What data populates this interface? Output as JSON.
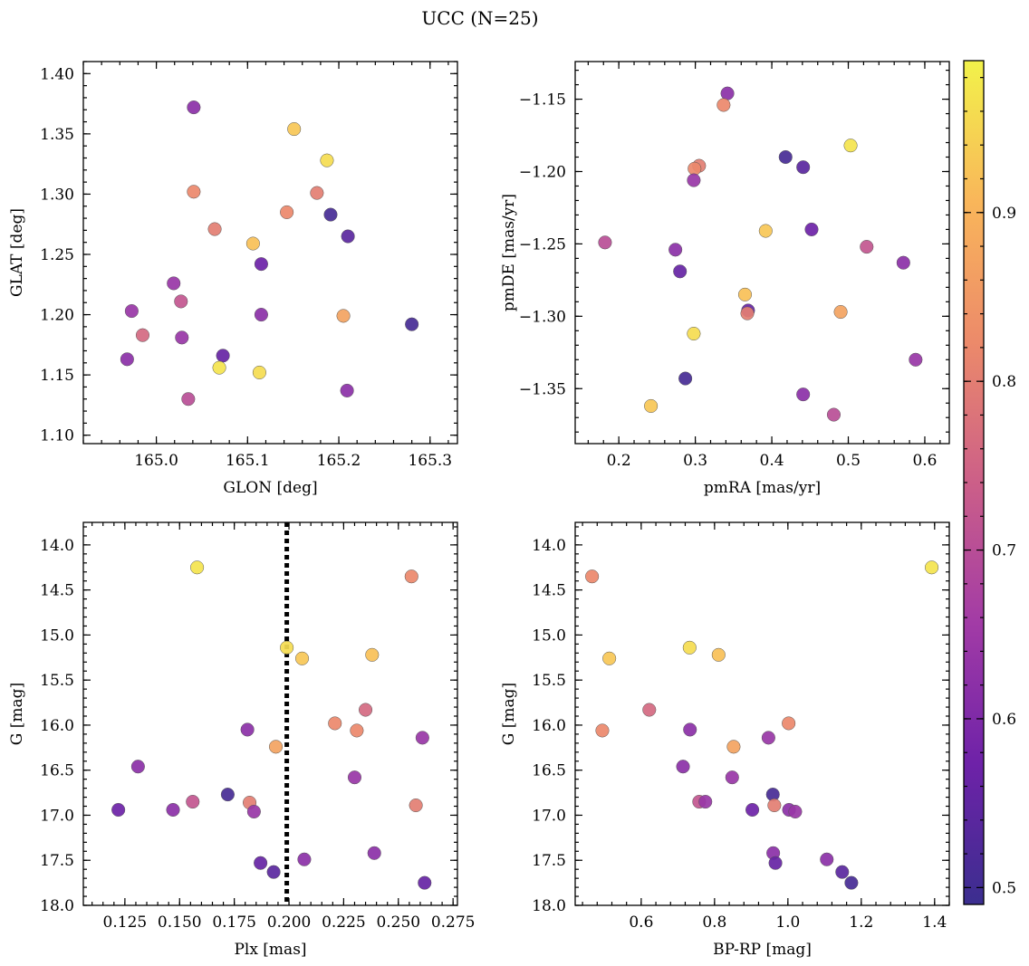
{
  "figure_title": "UCC (N=25)",
  "chart_data": [
    {
      "type": "scatter",
      "xlabel": "GLON [deg]",
      "ylabel": "GLAT [deg]",
      "xlim": [
        164.92,
        165.33
      ],
      "ylim": [
        1.093,
        1.41
      ],
      "xticks": [
        165.0,
        165.1,
        165.2,
        165.3
      ],
      "xtick_labels": [
        "165.0",
        "165.1",
        "165.2",
        "165.3"
      ],
      "yticks": [
        1.1,
        1.15,
        1.2,
        1.25,
        1.3,
        1.35,
        1.4
      ],
      "ytick_labels": [
        "1.10",
        "1.15",
        "1.20",
        "1.25",
        "1.30",
        "1.35",
        "1.40"
      ],
      "points": [
        {
          "x": 165.041,
          "y": 1.372,
          "c": 0.62
        },
        {
          "x": 165.151,
          "y": 1.354,
          "c": 0.93
        },
        {
          "x": 165.187,
          "y": 1.328,
          "c": 0.96
        },
        {
          "x": 165.041,
          "y": 1.302,
          "c": 0.82
        },
        {
          "x": 165.176,
          "y": 1.301,
          "c": 0.8
        },
        {
          "x": 165.143,
          "y": 1.285,
          "c": 0.82
        },
        {
          "x": 165.191,
          "y": 1.283,
          "c": 0.51
        },
        {
          "x": 165.064,
          "y": 1.271,
          "c": 0.8
        },
        {
          "x": 165.21,
          "y": 1.265,
          "c": 0.54
        },
        {
          "x": 165.106,
          "y": 1.259,
          "c": 0.92
        },
        {
          "x": 165.115,
          "y": 1.242,
          "c": 0.57
        },
        {
          "x": 165.019,
          "y": 1.226,
          "c": 0.64
        },
        {
          "x": 165.027,
          "y": 1.211,
          "c": 0.72
        },
        {
          "x": 164.973,
          "y": 1.203,
          "c": 0.64
        },
        {
          "x": 165.115,
          "y": 1.2,
          "c": 0.62
        },
        {
          "x": 165.205,
          "y": 1.199,
          "c": 0.87
        },
        {
          "x": 165.28,
          "y": 1.192,
          "c": 0.51
        },
        {
          "x": 164.985,
          "y": 1.183,
          "c": 0.76
        },
        {
          "x": 165.028,
          "y": 1.181,
          "c": 0.64
        },
        {
          "x": 165.073,
          "y": 1.166,
          "c": 0.56
        },
        {
          "x": 164.968,
          "y": 1.163,
          "c": 0.62
        },
        {
          "x": 165.069,
          "y": 1.156,
          "c": 0.97
        },
        {
          "x": 165.113,
          "y": 1.152,
          "c": 0.96
        },
        {
          "x": 165.209,
          "y": 1.137,
          "c": 0.62
        },
        {
          "x": 165.035,
          "y": 1.13,
          "c": 0.7
        }
      ]
    },
    {
      "type": "scatter",
      "xlabel": "pmRA [mas/yr]",
      "ylabel": "pmDE [mas/yr]",
      "xlim": [
        0.143,
        0.632
      ],
      "ylim": [
        -1.388,
        -1.124
      ],
      "xticks": [
        0.2,
        0.3,
        0.4,
        0.5,
        0.6
      ],
      "xtick_labels": [
        "0.2",
        "0.3",
        "0.4",
        "0.5",
        "0.6"
      ],
      "yticks": [
        -1.35,
        -1.3,
        -1.25,
        -1.2,
        -1.15
      ],
      "ytick_labels": [
        "−1.35",
        "−1.30",
        "−1.25",
        "−1.20",
        "−1.15"
      ],
      "points": [
        {
          "x": 0.342,
          "y": -1.146,
          "c": 0.62
        },
        {
          "x": 0.337,
          "y": -1.154,
          "c": 0.82
        },
        {
          "x": 0.503,
          "y": -1.182,
          "c": 0.97
        },
        {
          "x": 0.418,
          "y": -1.19,
          "c": 0.51
        },
        {
          "x": 0.441,
          "y": -1.197,
          "c": 0.54
        },
        {
          "x": 0.305,
          "y": -1.196,
          "c": 0.8
        },
        {
          "x": 0.299,
          "y": -1.198,
          "c": 0.82
        },
        {
          "x": 0.298,
          "y": -1.206,
          "c": 0.64
        },
        {
          "x": 0.392,
          "y": -1.241,
          "c": 0.93
        },
        {
          "x": 0.452,
          "y": -1.24,
          "c": 0.57
        },
        {
          "x": 0.182,
          "y": -1.249,
          "c": 0.7
        },
        {
          "x": 0.524,
          "y": -1.252,
          "c": 0.72
        },
        {
          "x": 0.274,
          "y": -1.254,
          "c": 0.62
        },
        {
          "x": 0.572,
          "y": -1.263,
          "c": 0.62
        },
        {
          "x": 0.28,
          "y": -1.269,
          "c": 0.56
        },
        {
          "x": 0.365,
          "y": -1.285,
          "c": 0.92
        },
        {
          "x": 0.369,
          "y": -1.296,
          "c": 0.56
        },
        {
          "x": 0.368,
          "y": -1.298,
          "c": 0.8
        },
        {
          "x": 0.49,
          "y": -1.297,
          "c": 0.87
        },
        {
          "x": 0.298,
          "y": -1.312,
          "c": 0.96
        },
        {
          "x": 0.588,
          "y": -1.33,
          "c": 0.64
        },
        {
          "x": 0.287,
          "y": -1.343,
          "c": 0.51
        },
        {
          "x": 0.441,
          "y": -1.354,
          "c": 0.62
        },
        {
          "x": 0.242,
          "y": -1.362,
          "c": 0.93
        },
        {
          "x": 0.481,
          "y": -1.368,
          "c": 0.7
        }
      ]
    },
    {
      "type": "scatter",
      "xlabel": "Plx [mas]",
      "ylabel": "G [mag]",
      "xlim": [
        0.106,
        0.277
      ],
      "ylim": [
        18.0,
        13.75
      ],
      "y_inverted": true,
      "vline": 0.199,
      "xticks": [
        0.125,
        0.15,
        0.175,
        0.2,
        0.225,
        0.25,
        0.275
      ],
      "xtick_labels": [
        "0.125",
        "0.150",
        "0.175",
        "0.200",
        "0.225",
        "0.250",
        "0.275"
      ],
      "yticks": [
        14.0,
        14.5,
        15.0,
        15.5,
        16.0,
        16.5,
        17.0,
        17.5,
        18.0
      ],
      "ytick_labels": [
        "14.0",
        "14.5",
        "15.0",
        "15.5",
        "16.0",
        "16.5",
        "17.0",
        "17.5",
        "18.0"
      ],
      "points": [
        {
          "x": 0.158,
          "y": 14.25,
          "c": 0.97
        },
        {
          "x": 0.256,
          "y": 14.35,
          "c": 0.82
        },
        {
          "x": 0.199,
          "y": 15.14,
          "c": 0.96
        },
        {
          "x": 0.206,
          "y": 15.26,
          "c": 0.93
        },
        {
          "x": 0.238,
          "y": 15.22,
          "c": 0.92
        },
        {
          "x": 0.235,
          "y": 15.83,
          "c": 0.76
        },
        {
          "x": 0.221,
          "y": 15.98,
          "c": 0.82
        },
        {
          "x": 0.181,
          "y": 16.05,
          "c": 0.62
        },
        {
          "x": 0.231,
          "y": 16.06,
          "c": 0.82
        },
        {
          "x": 0.261,
          "y": 16.14,
          "c": 0.64
        },
        {
          "x": 0.194,
          "y": 16.24,
          "c": 0.87
        },
        {
          "x": 0.131,
          "y": 16.46,
          "c": 0.62
        },
        {
          "x": 0.23,
          "y": 16.58,
          "c": 0.64
        },
        {
          "x": 0.172,
          "y": 16.77,
          "c": 0.51
        },
        {
          "x": 0.156,
          "y": 16.85,
          "c": 0.72
        },
        {
          "x": 0.182,
          "y": 16.86,
          "c": 0.8
        },
        {
          "x": 0.258,
          "y": 16.89,
          "c": 0.8
        },
        {
          "x": 0.122,
          "y": 16.94,
          "c": 0.57
        },
        {
          "x": 0.147,
          "y": 16.94,
          "c": 0.62
        },
        {
          "x": 0.184,
          "y": 16.96,
          "c": 0.64
        },
        {
          "x": 0.239,
          "y": 17.42,
          "c": 0.62
        },
        {
          "x": 0.207,
          "y": 17.49,
          "c": 0.62
        },
        {
          "x": 0.187,
          "y": 17.53,
          "c": 0.56
        },
        {
          "x": 0.193,
          "y": 17.63,
          "c": 0.54
        },
        {
          "x": 0.262,
          "y": 17.75,
          "c": 0.56
        }
      ]
    },
    {
      "type": "scatter",
      "xlabel": "BP-RP [mag]",
      "ylabel": "G [mag]",
      "xlim": [
        0.42,
        1.44
      ],
      "ylim": [
        18.0,
        13.75
      ],
      "y_inverted": true,
      "xticks": [
        0.6,
        0.8,
        1.0,
        1.2,
        1.4
      ],
      "xtick_labels": [
        "0.6",
        "0.8",
        "1.0",
        "1.2",
        "1.4"
      ],
      "yticks": [
        14.0,
        14.5,
        15.0,
        15.5,
        16.0,
        16.5,
        17.0,
        17.5,
        18.0
      ],
      "ytick_labels": [
        "14.0",
        "14.5",
        "15.0",
        "15.5",
        "16.0",
        "16.5",
        "17.0",
        "17.5",
        "18.0"
      ],
      "points": [
        {
          "x": 0.466,
          "y": 14.35,
          "c": 0.82
        },
        {
          "x": 1.392,
          "y": 14.25,
          "c": 0.97
        },
        {
          "x": 0.732,
          "y": 15.14,
          "c": 0.96
        },
        {
          "x": 0.811,
          "y": 15.22,
          "c": 0.92
        },
        {
          "x": 0.513,
          "y": 15.26,
          "c": 0.93
        },
        {
          "x": 0.622,
          "y": 15.83,
          "c": 0.76
        },
        {
          "x": 1.002,
          "y": 15.98,
          "c": 0.82
        },
        {
          "x": 0.733,
          "y": 16.05,
          "c": 0.62
        },
        {
          "x": 0.494,
          "y": 16.06,
          "c": 0.82
        },
        {
          "x": 0.947,
          "y": 16.14,
          "c": 0.64
        },
        {
          "x": 0.852,
          "y": 16.24,
          "c": 0.87
        },
        {
          "x": 0.714,
          "y": 16.46,
          "c": 0.62
        },
        {
          "x": 0.848,
          "y": 16.58,
          "c": 0.64
        },
        {
          "x": 0.959,
          "y": 16.77,
          "c": 0.51
        },
        {
          "x": 0.758,
          "y": 16.85,
          "c": 0.72
        },
        {
          "x": 0.775,
          "y": 16.85,
          "c": 0.64
        },
        {
          "x": 0.963,
          "y": 16.89,
          "c": 0.8
        },
        {
          "x": 0.903,
          "y": 16.94,
          "c": 0.57
        },
        {
          "x": 1.003,
          "y": 16.94,
          "c": 0.62
        },
        {
          "x": 1.02,
          "y": 16.96,
          "c": 0.64
        },
        {
          "x": 0.96,
          "y": 17.42,
          "c": 0.62
        },
        {
          "x": 1.106,
          "y": 17.49,
          "c": 0.62
        },
        {
          "x": 0.966,
          "y": 17.53,
          "c": 0.56
        },
        {
          "x": 1.148,
          "y": 17.63,
          "c": 0.54
        },
        {
          "x": 1.173,
          "y": 17.75,
          "c": 0.51
        }
      ]
    }
  ],
  "colorbar": {
    "colormap": "plasma",
    "vmin": 0.49,
    "vmax": 0.99,
    "ticks": [
      0.5,
      0.6,
      0.7,
      0.8,
      0.9
    ],
    "tick_labels": [
      "0.5",
      "0.6",
      "0.7",
      "0.8",
      "0.9"
    ],
    "colors": [
      "#3b2e8f",
      "#6e22a8",
      "#a23ba6",
      "#cc5f88",
      "#ec8a6a",
      "#f9b65a",
      "#f2f24a"
    ]
  }
}
